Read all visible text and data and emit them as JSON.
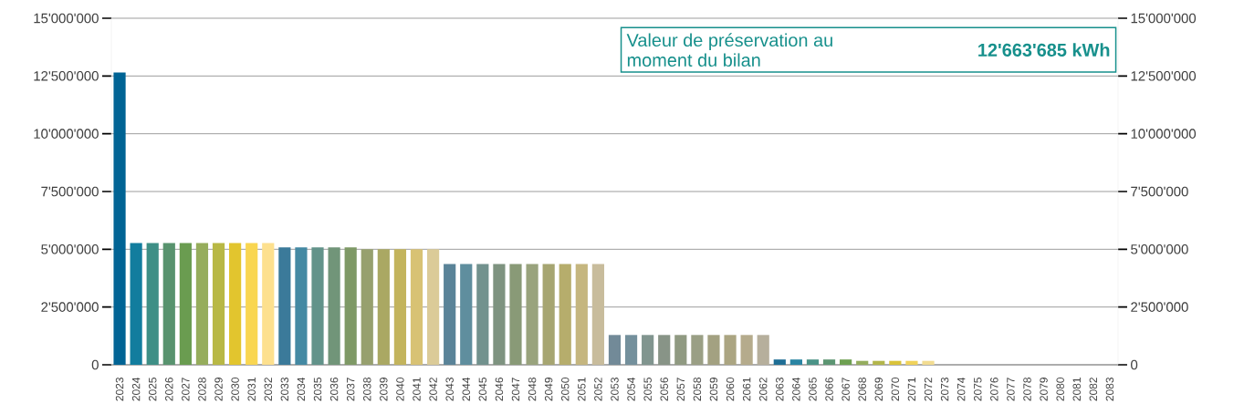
{
  "chart_data": {
    "type": "bar",
    "categories": [
      "2023",
      "2024",
      "2025",
      "2026",
      "2027",
      "2028",
      "2029",
      "2030",
      "2031",
      "2032",
      "2033",
      "2034",
      "2035",
      "2036",
      "2037",
      "2038",
      "2039",
      "2040",
      "2041",
      "2042",
      "2043",
      "2044",
      "2045",
      "2046",
      "2047",
      "2048",
      "2049",
      "2050",
      "2051",
      "2052",
      "2053",
      "2054",
      "2055",
      "2056",
      "2057",
      "2058",
      "2059",
      "2060",
      "2061",
      "2062",
      "2063",
      "2064",
      "2065",
      "2066",
      "2067",
      "2068",
      "2069",
      "2070",
      "2071",
      "2072",
      "2073",
      "2074",
      "2075",
      "2076",
      "2077",
      "2078",
      "2079",
      "2080",
      "2081",
      "2082",
      "2083"
    ],
    "values": [
      12650000,
      5270000,
      5270000,
      5270000,
      5270000,
      5270000,
      5270000,
      5270000,
      5270000,
      5270000,
      5080000,
      5080000,
      5080000,
      5080000,
      5080000,
      5000000,
      5000000,
      5000000,
      5000000,
      5000000,
      4360000,
      4360000,
      4360000,
      4360000,
      4360000,
      4360000,
      4360000,
      4360000,
      4360000,
      4360000,
      1290000,
      1290000,
      1290000,
      1290000,
      1290000,
      1290000,
      1290000,
      1290000,
      1290000,
      1290000,
      230000,
      230000,
      230000,
      230000,
      230000,
      170000,
      170000,
      170000,
      170000,
      170000,
      0,
      0,
      0,
      0,
      0,
      0,
      0,
      0,
      0,
      0,
      0
    ],
    "colors": [
      "#006394",
      "#127d9e",
      "#3e8f86",
      "#58936e",
      "#6a9c50",
      "#96ad5c",
      "#b8b845",
      "#e2c52e",
      "#f9d651",
      "#fde08e",
      "#3b7a9a",
      "#4489a3",
      "#62938a",
      "#719579",
      "#7e9966",
      "#97a06e",
      "#aaa863",
      "#c3b45d",
      "#d8c274",
      "#dbcb98",
      "#5a8398",
      "#5f8e9e",
      "#72928e",
      "#7e9380",
      "#899a77",
      "#99a37d",
      "#a6a571",
      "#b6ad6c",
      "#c5b67f",
      "#c8bc9c",
      "#728a98",
      "#74909c",
      "#81958f",
      "#889487",
      "#909a82",
      "#9a9f85",
      "#a3a181",
      "#aba582",
      "#b5ab8c",
      "#b6af9c",
      "#1f6e95",
      "#2a85a3",
      "#4b9387",
      "#5c9572",
      "#6ea052",
      "#95ad5e",
      "#b3b64b",
      "#d9c33a",
      "#f0d25a",
      "#f2dc91",
      "#006394",
      "#127d9e",
      "#3e8f86",
      "#58936e",
      "#6a9c50",
      "#96ad5c",
      "#b8b845",
      "#e2c52e",
      "#f9d651",
      "#fde08e",
      "#006394"
    ],
    "ylim": [
      0,
      15000000
    ],
    "yticks": [
      0,
      {
        "value": 2500000,
        "label": "2'500'000"
      },
      {
        "value": 5000000,
        "label": "5'000'000"
      },
      {
        "value": 7500000,
        "label": "7'500'000"
      },
      {
        "value": 10000000,
        "label": "10'000'000"
      },
      {
        "value": 12500000,
        "label": "12'500'000"
      },
      {
        "value": 15000000,
        "label": "15'000'000"
      }
    ],
    "y2lim": [
      0,
      15000000
    ],
    "y2ticks": [
      0,
      {
        "value": 2500000,
        "label": "2'500'000"
      },
      {
        "value": 5000000,
        "label": "5'000'000"
      },
      {
        "value": 7500000,
        "label": "7'500'000"
      },
      {
        "value": 10000000,
        "label": "10'000'000"
      },
      {
        "value": 12500000,
        "label": "12'500'000"
      },
      {
        "value": 15000000,
        "label": "15'000'000"
      }
    ],
    "grid": "y",
    "annotations": [
      "Valeur de préservation au moment du bilan",
      "12'663'685 kWh"
    ]
  }
}
